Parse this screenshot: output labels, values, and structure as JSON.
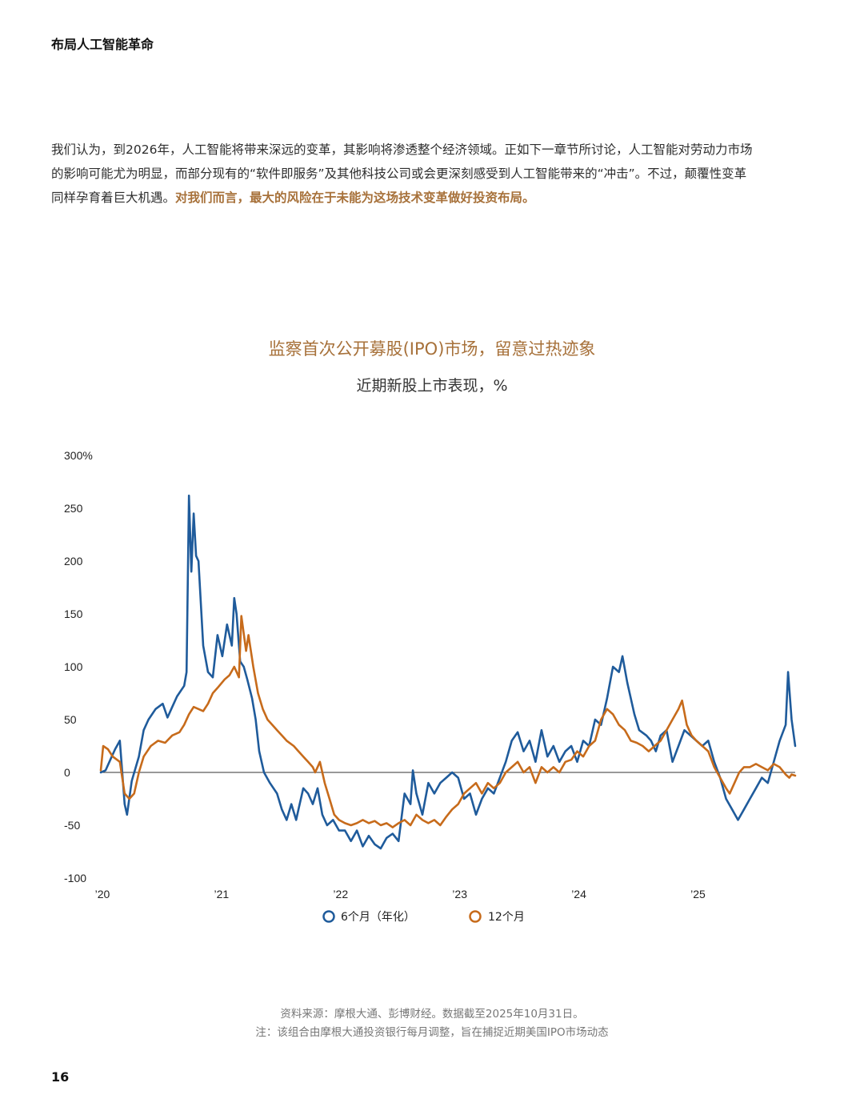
{
  "header": {
    "title": "布局人工智能革命"
  },
  "intro": {
    "text": "我们认为，到2026年，人工智能将带来深远的变革，其影响将渗透整个经济领域。正如下一章节所讨论，人工智能对劳动力市场的影响可能尤为明显，而部分现有的“软件即服务”及其他科技公司或会更深刻感受到人工智能带来的“冲击”。不过，颠覆性变革同样孕育着巨大机遇。",
    "highlight": "对我们而言，最大的风险在于未能为这场技术变革做好投资布局。"
  },
  "chart_data": {
    "type": "line",
    "title": "监察首次公开募股(IPO)市场，留意过热迹象",
    "subtitle": "近期新股上市表现，%",
    "ylim": [
      -100,
      300
    ],
    "yticks": [
      {
        "value": 300,
        "label": "300%"
      },
      {
        "value": 250,
        "label": "250"
      },
      {
        "value": 200,
        "label": "200"
      },
      {
        "value": 150,
        "label": "150"
      },
      {
        "value": 100,
        "label": "100"
      },
      {
        "value": 50,
        "label": "50"
      },
      {
        "value": 0,
        "label": "0"
      },
      {
        "value": -50,
        "label": "-50"
      },
      {
        "value": -100,
        "label": "-100"
      }
    ],
    "xlim": [
      2020.0,
      2025.83
    ],
    "xticks": [
      {
        "value": 2020,
        "label": "’20"
      },
      {
        "value": 2021,
        "label": "’21"
      },
      {
        "value": 2022,
        "label": "’22"
      },
      {
        "value": 2023,
        "label": "’23"
      },
      {
        "value": 2024,
        "label": "’24"
      },
      {
        "value": 2025,
        "label": "’25"
      }
    ],
    "grid": false,
    "legend_position": "bottom",
    "series": [
      {
        "name": "6个月（年化）",
        "color": "#1f5b9b",
        "points": [
          [
            2020.0,
            0
          ],
          [
            2020.04,
            2
          ],
          [
            2020.08,
            12
          ],
          [
            2020.12,
            22
          ],
          [
            2020.16,
            30
          ],
          [
            2020.2,
            -30
          ],
          [
            2020.22,
            -40
          ],
          [
            2020.26,
            -8
          ],
          [
            2020.32,
            15
          ],
          [
            2020.36,
            40
          ],
          [
            2020.4,
            50
          ],
          [
            2020.46,
            60
          ],
          [
            2020.52,
            65
          ],
          [
            2020.56,
            52
          ],
          [
            2020.6,
            62
          ],
          [
            2020.64,
            72
          ],
          [
            2020.7,
            82
          ],
          [
            2020.72,
            95
          ],
          [
            2020.74,
            262
          ],
          [
            2020.76,
            190
          ],
          [
            2020.78,
            245
          ],
          [
            2020.8,
            205
          ],
          [
            2020.82,
            200
          ],
          [
            2020.86,
            120
          ],
          [
            2020.9,
            95
          ],
          [
            2020.94,
            90
          ],
          [
            2020.98,
            130
          ],
          [
            2021.02,
            110
          ],
          [
            2021.06,
            140
          ],
          [
            2021.1,
            120
          ],
          [
            2021.12,
            165
          ],
          [
            2021.14,
            150
          ],
          [
            2021.17,
            105
          ],
          [
            2021.2,
            100
          ],
          [
            2021.23,
            88
          ],
          [
            2021.27,
            70
          ],
          [
            2021.3,
            50
          ],
          [
            2021.33,
            20
          ],
          [
            2021.37,
            0
          ],
          [
            2021.42,
            -10
          ],
          [
            2021.48,
            -20
          ],
          [
            2021.52,
            -35
          ],
          [
            2021.56,
            -45
          ],
          [
            2021.6,
            -30
          ],
          [
            2021.64,
            -45
          ],
          [
            2021.66,
            -35
          ],
          [
            2021.7,
            -15
          ],
          [
            2021.74,
            -20
          ],
          [
            2021.78,
            -30
          ],
          [
            2021.82,
            -15
          ],
          [
            2021.86,
            -40
          ],
          [
            2021.9,
            -50
          ],
          [
            2021.95,
            -45
          ],
          [
            2022.0,
            -55
          ],
          [
            2022.05,
            -55
          ],
          [
            2022.1,
            -65
          ],
          [
            2022.15,
            -55
          ],
          [
            2022.2,
            -70
          ],
          [
            2022.25,
            -60
          ],
          [
            2022.3,
            -68
          ],
          [
            2022.35,
            -72
          ],
          [
            2022.4,
            -62
          ],
          [
            2022.45,
            -58
          ],
          [
            2022.5,
            -65
          ],
          [
            2022.55,
            -20
          ],
          [
            2022.6,
            -30
          ],
          [
            2022.62,
            2
          ],
          [
            2022.65,
            -20
          ],
          [
            2022.7,
            -40
          ],
          [
            2022.75,
            -10
          ],
          [
            2022.8,
            -20
          ],
          [
            2022.85,
            -10
          ],
          [
            2022.9,
            -5
          ],
          [
            2022.95,
            0
          ],
          [
            2023.0,
            -5
          ],
          [
            2023.05,
            -25
          ],
          [
            2023.1,
            -20
          ],
          [
            2023.15,
            -40
          ],
          [
            2023.2,
            -25
          ],
          [
            2023.25,
            -15
          ],
          [
            2023.3,
            -20
          ],
          [
            2023.35,
            -5
          ],
          [
            2023.4,
            10
          ],
          [
            2023.45,
            30
          ],
          [
            2023.5,
            38
          ],
          [
            2023.55,
            20
          ],
          [
            2023.6,
            30
          ],
          [
            2023.65,
            10
          ],
          [
            2023.7,
            40
          ],
          [
            2023.75,
            15
          ],
          [
            2023.8,
            25
          ],
          [
            2023.85,
            10
          ],
          [
            2023.9,
            20
          ],
          [
            2023.95,
            25
          ],
          [
            2024.0,
            10
          ],
          [
            2024.05,
            30
          ],
          [
            2024.1,
            25
          ],
          [
            2024.15,
            50
          ],
          [
            2024.2,
            45
          ],
          [
            2024.25,
            70
          ],
          [
            2024.3,
            100
          ],
          [
            2024.35,
            95
          ],
          [
            2024.38,
            110
          ],
          [
            2024.42,
            85
          ],
          [
            2024.48,
            55
          ],
          [
            2024.52,
            40
          ],
          [
            2024.58,
            35
          ],
          [
            2024.62,
            30
          ],
          [
            2024.66,
            20
          ],
          [
            2024.7,
            35
          ],
          [
            2024.75,
            40
          ],
          [
            2024.8,
            10
          ],
          [
            2024.85,
            25
          ],
          [
            2024.9,
            40
          ],
          [
            2024.95,
            35
          ],
          [
            2025.0,
            30
          ],
          [
            2025.05,
            25
          ],
          [
            2025.1,
            30
          ],
          [
            2025.15,
            10
          ],
          [
            2025.2,
            -5
          ],
          [
            2025.25,
            -25
          ],
          [
            2025.3,
            -35
          ],
          [
            2025.35,
            -45
          ],
          [
            2025.4,
            -35
          ],
          [
            2025.45,
            -25
          ],
          [
            2025.5,
            -15
          ],
          [
            2025.55,
            -5
          ],
          [
            2025.6,
            -10
          ],
          [
            2025.65,
            10
          ],
          [
            2025.7,
            30
          ],
          [
            2025.75,
            45
          ],
          [
            2025.77,
            95
          ],
          [
            2025.8,
            50
          ],
          [
            2025.83,
            25
          ]
        ]
      },
      {
        "name": "12个月",
        "color": "#c76b1b",
        "points": [
          [
            2020.0,
            2
          ],
          [
            2020.02,
            25
          ],
          [
            2020.06,
            22
          ],
          [
            2020.1,
            15
          ],
          [
            2020.16,
            10
          ],
          [
            2020.2,
            -20
          ],
          [
            2020.24,
            -25
          ],
          [
            2020.28,
            -20
          ],
          [
            2020.32,
            0
          ],
          [
            2020.36,
            15
          ],
          [
            2020.42,
            25
          ],
          [
            2020.48,
            30
          ],
          [
            2020.54,
            28
          ],
          [
            2020.6,
            35
          ],
          [
            2020.66,
            38
          ],
          [
            2020.7,
            45
          ],
          [
            2020.74,
            55
          ],
          [
            2020.78,
            62
          ],
          [
            2020.82,
            60
          ],
          [
            2020.86,
            58
          ],
          [
            2020.9,
            65
          ],
          [
            2020.94,
            75
          ],
          [
            2020.98,
            80
          ],
          [
            2021.04,
            88
          ],
          [
            2021.08,
            92
          ],
          [
            2021.12,
            100
          ],
          [
            2021.16,
            90
          ],
          [
            2021.18,
            148
          ],
          [
            2021.22,
            115
          ],
          [
            2021.24,
            130
          ],
          [
            2021.28,
            100
          ],
          [
            2021.32,
            75
          ],
          [
            2021.36,
            60
          ],
          [
            2021.4,
            50
          ],
          [
            2021.44,
            45
          ],
          [
            2021.48,
            40
          ],
          [
            2021.52,
            35
          ],
          [
            2021.56,
            30
          ],
          [
            2021.62,
            25
          ],
          [
            2021.66,
            20
          ],
          [
            2021.7,
            15
          ],
          [
            2021.74,
            10
          ],
          [
            2021.78,
            5
          ],
          [
            2021.8,
            0
          ],
          [
            2021.84,
            10
          ],
          [
            2021.88,
            -10
          ],
          [
            2021.92,
            -25
          ],
          [
            2021.96,
            -40
          ],
          [
            2022.0,
            -45
          ],
          [
            2022.05,
            -48
          ],
          [
            2022.1,
            -50
          ],
          [
            2022.15,
            -48
          ],
          [
            2022.2,
            -45
          ],
          [
            2022.25,
            -48
          ],
          [
            2022.3,
            -46
          ],
          [
            2022.35,
            -50
          ],
          [
            2022.4,
            -48
          ],
          [
            2022.45,
            -52
          ],
          [
            2022.5,
            -48
          ],
          [
            2022.55,
            -45
          ],
          [
            2022.6,
            -50
          ],
          [
            2022.65,
            -40
          ],
          [
            2022.7,
            -45
          ],
          [
            2022.75,
            -48
          ],
          [
            2022.8,
            -45
          ],
          [
            2022.85,
            -50
          ],
          [
            2022.9,
            -42
          ],
          [
            2022.95,
            -35
          ],
          [
            2023.0,
            -30
          ],
          [
            2023.05,
            -20
          ],
          [
            2023.1,
            -15
          ],
          [
            2023.15,
            -10
          ],
          [
            2023.2,
            -20
          ],
          [
            2023.25,
            -10
          ],
          [
            2023.3,
            -15
          ],
          [
            2023.35,
            -10
          ],
          [
            2023.4,
            0
          ],
          [
            2023.45,
            5
          ],
          [
            2023.5,
            10
          ],
          [
            2023.55,
            0
          ],
          [
            2023.6,
            5
          ],
          [
            2023.65,
            -10
          ],
          [
            2023.7,
            5
          ],
          [
            2023.75,
            0
          ],
          [
            2023.8,
            5
          ],
          [
            2023.85,
            0
          ],
          [
            2023.9,
            10
          ],
          [
            2023.95,
            12
          ],
          [
            2024.0,
            20
          ],
          [
            2024.05,
            15
          ],
          [
            2024.1,
            25
          ],
          [
            2024.15,
            30
          ],
          [
            2024.2,
            50
          ],
          [
            2024.25,
            60
          ],
          [
            2024.3,
            55
          ],
          [
            2024.35,
            45
          ],
          [
            2024.4,
            40
          ],
          [
            2024.45,
            30
          ],
          [
            2024.5,
            28
          ],
          [
            2024.55,
            25
          ],
          [
            2024.6,
            20
          ],
          [
            2024.65,
            25
          ],
          [
            2024.7,
            30
          ],
          [
            2024.75,
            40
          ],
          [
            2024.8,
            50
          ],
          [
            2024.85,
            60
          ],
          [
            2024.88,
            68
          ],
          [
            2024.92,
            45
          ],
          [
            2024.96,
            35
          ],
          [
            2025.0,
            30
          ],
          [
            2025.05,
            25
          ],
          [
            2025.1,
            20
          ],
          [
            2025.15,
            5
          ],
          [
            2025.2,
            -5
          ],
          [
            2025.25,
            -15
          ],
          [
            2025.28,
            -20
          ],
          [
            2025.32,
            -10
          ],
          [
            2025.36,
            0
          ],
          [
            2025.4,
            5
          ],
          [
            2025.45,
            5
          ],
          [
            2025.5,
            8
          ],
          [
            2025.55,
            5
          ],
          [
            2025.6,
            2
          ],
          [
            2025.65,
            8
          ],
          [
            2025.7,
            5
          ],
          [
            2025.75,
            -2
          ],
          [
            2025.78,
            -5
          ],
          [
            2025.8,
            -2
          ],
          [
            2025.83,
            -3
          ]
        ]
      }
    ]
  },
  "legend": [
    {
      "label": "6个月（年化）",
      "color": "#1f5b9b"
    },
    {
      "label": "12个月",
      "color": "#c76b1b"
    }
  ],
  "footnotes": {
    "source": "资料来源：摩根大通、彭博财经。数据截至2025年10月31日。",
    "note": "注：该组合由摩根大通投资银行每月调整，旨在捕捉近期美国IPO市场动态"
  },
  "page_number": "16"
}
